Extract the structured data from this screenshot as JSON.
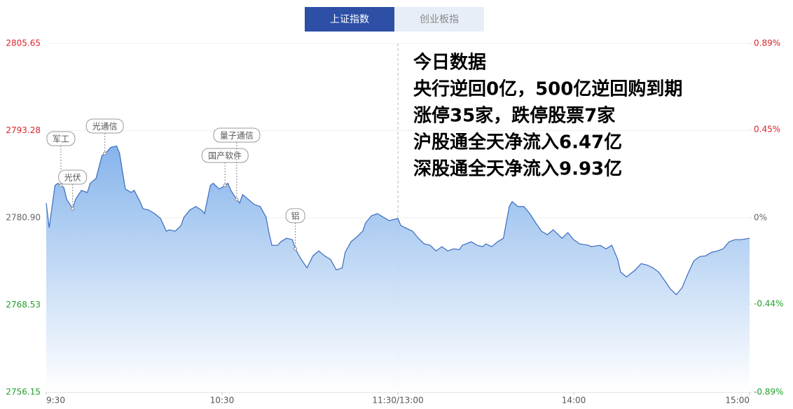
{
  "tabs": [
    {
      "label": "上证指数",
      "active": true
    },
    {
      "label": "创业板指",
      "active": false
    }
  ],
  "chart_data": {
    "type": "area",
    "line_color": "#3a6cc0",
    "fill_color": "#7fb0ea",
    "up_color": "#d9242a",
    "down_color": "#219f2c",
    "flat_color": "#666666",
    "grid": true,
    "xlim": [
      0,
      240
    ],
    "xticks": [
      {
        "value": 0,
        "label": "9:30"
      },
      {
        "value": 60,
        "label": "10:30"
      },
      {
        "value": 120,
        "label": "11:30/13:00"
      },
      {
        "value": 180,
        "label": "14:00"
      },
      {
        "value": 240,
        "label": "15:00"
      }
    ],
    "ylim": [
      2756.15,
      2805.65
    ],
    "yticks": [
      2805.65,
      2793.28,
      {
        "value": 2780.9,
        "label": "2780.90"
      },
      2768.53,
      2756.15
    ],
    "y2lim": [
      -0.89,
      0.89
    ],
    "y2ticks": [
      {
        "value": 0.89,
        "label": "0.89%"
      },
      {
        "value": 0.45,
        "label": "0.45%"
      },
      {
        "value": 0,
        "label": "0%"
      },
      {
        "value": -0.44,
        "label": "-0.44%"
      },
      {
        "value": -0.89,
        "label": "-0.89%"
      }
    ],
    "series": [
      {
        "name": "上证指数",
        "x": [
          0,
          1,
          3,
          4,
          6,
          7,
          9,
          10,
          12,
          14,
          15,
          17,
          19,
          21,
          22,
          24,
          25,
          26,
          27,
          29,
          30,
          32,
          33,
          35,
          37,
          39,
          41,
          42,
          44,
          46,
          47,
          49,
          51,
          53,
          54,
          56,
          57,
          59,
          60,
          62,
          63,
          65,
          66,
          67,
          69,
          71,
          73,
          75,
          76,
          77,
          79,
          80,
          82,
          84,
          85,
          87,
          89,
          91,
          93,
          95,
          97,
          99,
          101,
          102,
          104,
          106,
          108,
          109,
          111,
          113,
          115,
          117,
          120,
          121,
          123,
          125,
          127,
          129,
          131,
          133,
          135,
          137,
          139,
          141,
          142,
          145,
          147,
          149,
          150,
          152,
          154,
          156,
          158,
          159,
          161,
          163,
          165,
          167,
          169,
          171,
          173,
          176,
          178,
          180,
          182,
          185,
          186,
          189,
          191,
          193,
          195,
          196,
          198,
          201,
          203,
          205,
          207,
          209,
          211,
          213,
          215,
          217,
          219,
          221,
          223,
          225,
          227,
          229,
          231,
          233,
          235,
          237,
          240
        ],
        "values": [
          2783.0,
          2779.5,
          2785.5,
          2785.8,
          2785.2,
          2783.5,
          2782.2,
          2783.5,
          2784.8,
          2784.5,
          2785.8,
          2786.5,
          2789.7,
          2790.4,
          2790.9,
          2791.1,
          2790.1,
          2787.5,
          2785.0,
          2784.5,
          2784.8,
          2783.2,
          2782.2,
          2782.0,
          2781.5,
          2780.8,
          2779.0,
          2779.2,
          2779.0,
          2779.8,
          2781.0,
          2782.0,
          2782.5,
          2782.0,
          2781.5,
          2785.5,
          2785.8,
          2785.0,
          2785.2,
          2785.8,
          2784.8,
          2783.5,
          2783.0,
          2784.2,
          2783.5,
          2782.8,
          2782.5,
          2781.0,
          2778.8,
          2777.0,
          2777.0,
          2777.5,
          2778.0,
          2777.8,
          2776.5,
          2775.0,
          2773.8,
          2775.5,
          2776.2,
          2775.5,
          2775.0,
          2773.5,
          2773.8,
          2776.0,
          2777.5,
          2778.2,
          2779.0,
          2780.2,
          2781.2,
          2781.5,
          2781.0,
          2780.5,
          2780.8,
          2779.8,
          2779.4,
          2779.0,
          2778.0,
          2777.2,
          2777.0,
          2776.2,
          2776.8,
          2776.2,
          2776.5,
          2776.4,
          2777.0,
          2777.5,
          2777.0,
          2776.8,
          2777.2,
          2776.8,
          2777.5,
          2778.0,
          2782.5,
          2783.2,
          2782.5,
          2782.5,
          2781.5,
          2780.2,
          2779.0,
          2778.5,
          2779.2,
          2778.0,
          2778.8,
          2777.8,
          2777.2,
          2777.0,
          2776.8,
          2777.0,
          2776.5,
          2777.0,
          2775.0,
          2773.2,
          2772.5,
          2773.5,
          2774.4,
          2774.2,
          2773.8,
          2773.2,
          2772.0,
          2770.8,
          2770.0,
          2771.0,
          2773.0,
          2774.8,
          2775.4,
          2775.5,
          2776.0,
          2776.2,
          2776.5,
          2777.5,
          2777.8,
          2777.8,
          2778.0
        ]
      }
    ],
    "annotations": [
      {
        "text": "军工",
        "x": 5
      },
      {
        "text": "光伏",
        "x": 9
      },
      {
        "text": "光通信",
        "x": 20
      },
      {
        "text": "国产软件",
        "x": 61
      },
      {
        "text": "量子通信",
        "x": 65
      },
      {
        "text": "铝",
        "x": 85
      }
    ]
  },
  "notes": {
    "title": "今日数据",
    "lines": [
      "央行逆回0亿，500亿逆回购到期",
      "涨停35家，跌停股票7家",
      "沪股通全天净流入6.47亿",
      "深股通全天净流入9.93亿"
    ]
  }
}
